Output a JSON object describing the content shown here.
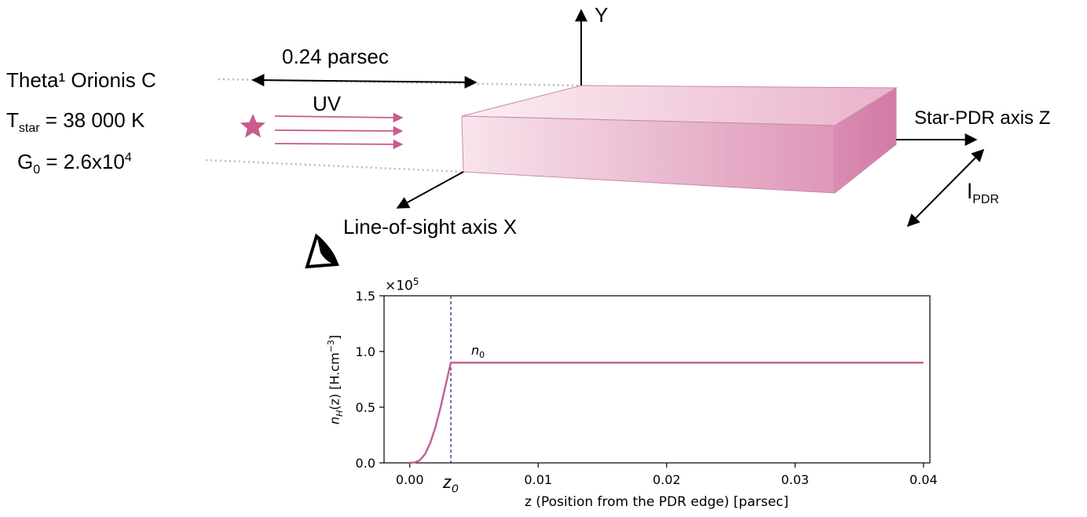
{
  "diagram": {
    "star_name": "Theta¹ Orionis C",
    "t_star_symbol": "T",
    "t_star_sub": "star",
    "t_star_value": " = 38 000 K",
    "g0_symbol": "G",
    "g0_sub": "0",
    "g0_value": " = 2.6x10",
    "g0_exp": "4",
    "distance_label": "0.24 parsec",
    "uv_label": "UV",
    "y_axis_label": "Y",
    "z_axis_label": "Star-PDR axis Z",
    "x_axis_label": "Line-of-sight axis X",
    "l_pdr_symbol": "l",
    "l_pdr_sub": "PDR",
    "accent_color": "#c85b8f",
    "star_color": "#c85b8f",
    "icons": [
      "star-icon",
      "eye-icon"
    ]
  },
  "chart_data": {
    "type": "line",
    "ylabel_var": "n",
    "ylabel_sub": "H",
    "ylabel_rest": "(z) [H.cm",
    "ylabel_exp": "−3",
    "ylabel_end": "]",
    "xlabel": "z (Position from the PDR edge) [parsec]",
    "multiplier": "×10",
    "multiplier_exp": "5",
    "xlim": [
      -0.002,
      0.0405
    ],
    "ylim": [
      0,
      150000
    ],
    "x_ticks": [
      0.0,
      0.01,
      0.02,
      0.03,
      0.04
    ],
    "x_tick_labels": [
      "0.00",
      "0.01",
      "0.02",
      "0.03",
      "0.04"
    ],
    "y_ticks": [
      0,
      50000,
      100000,
      150000
    ],
    "y_tick_labels": [
      "0.0",
      "0.5",
      "1.0",
      "1.5"
    ],
    "z0_x": 0.0032,
    "z0_label": "z",
    "z0_sub": "0",
    "n0_label": "n",
    "n0_sub": "0",
    "n0_value": 90000,
    "line_color": "#c0649a",
    "z0_line_color": "#2e2e7a",
    "series": [
      {
        "x": [
          0.0,
          0.0004,
          0.0008,
          0.0012,
          0.0016,
          0.002,
          0.0024,
          0.0028,
          0.0032,
          0.0033,
          0.01,
          0.02,
          0.03,
          0.04
        ],
        "y": [
          0,
          400,
          2500,
          8000,
          18000,
          32000,
          50000,
          70000,
          90000,
          90000,
          90000,
          90000,
          90000,
          90000
        ]
      }
    ]
  }
}
